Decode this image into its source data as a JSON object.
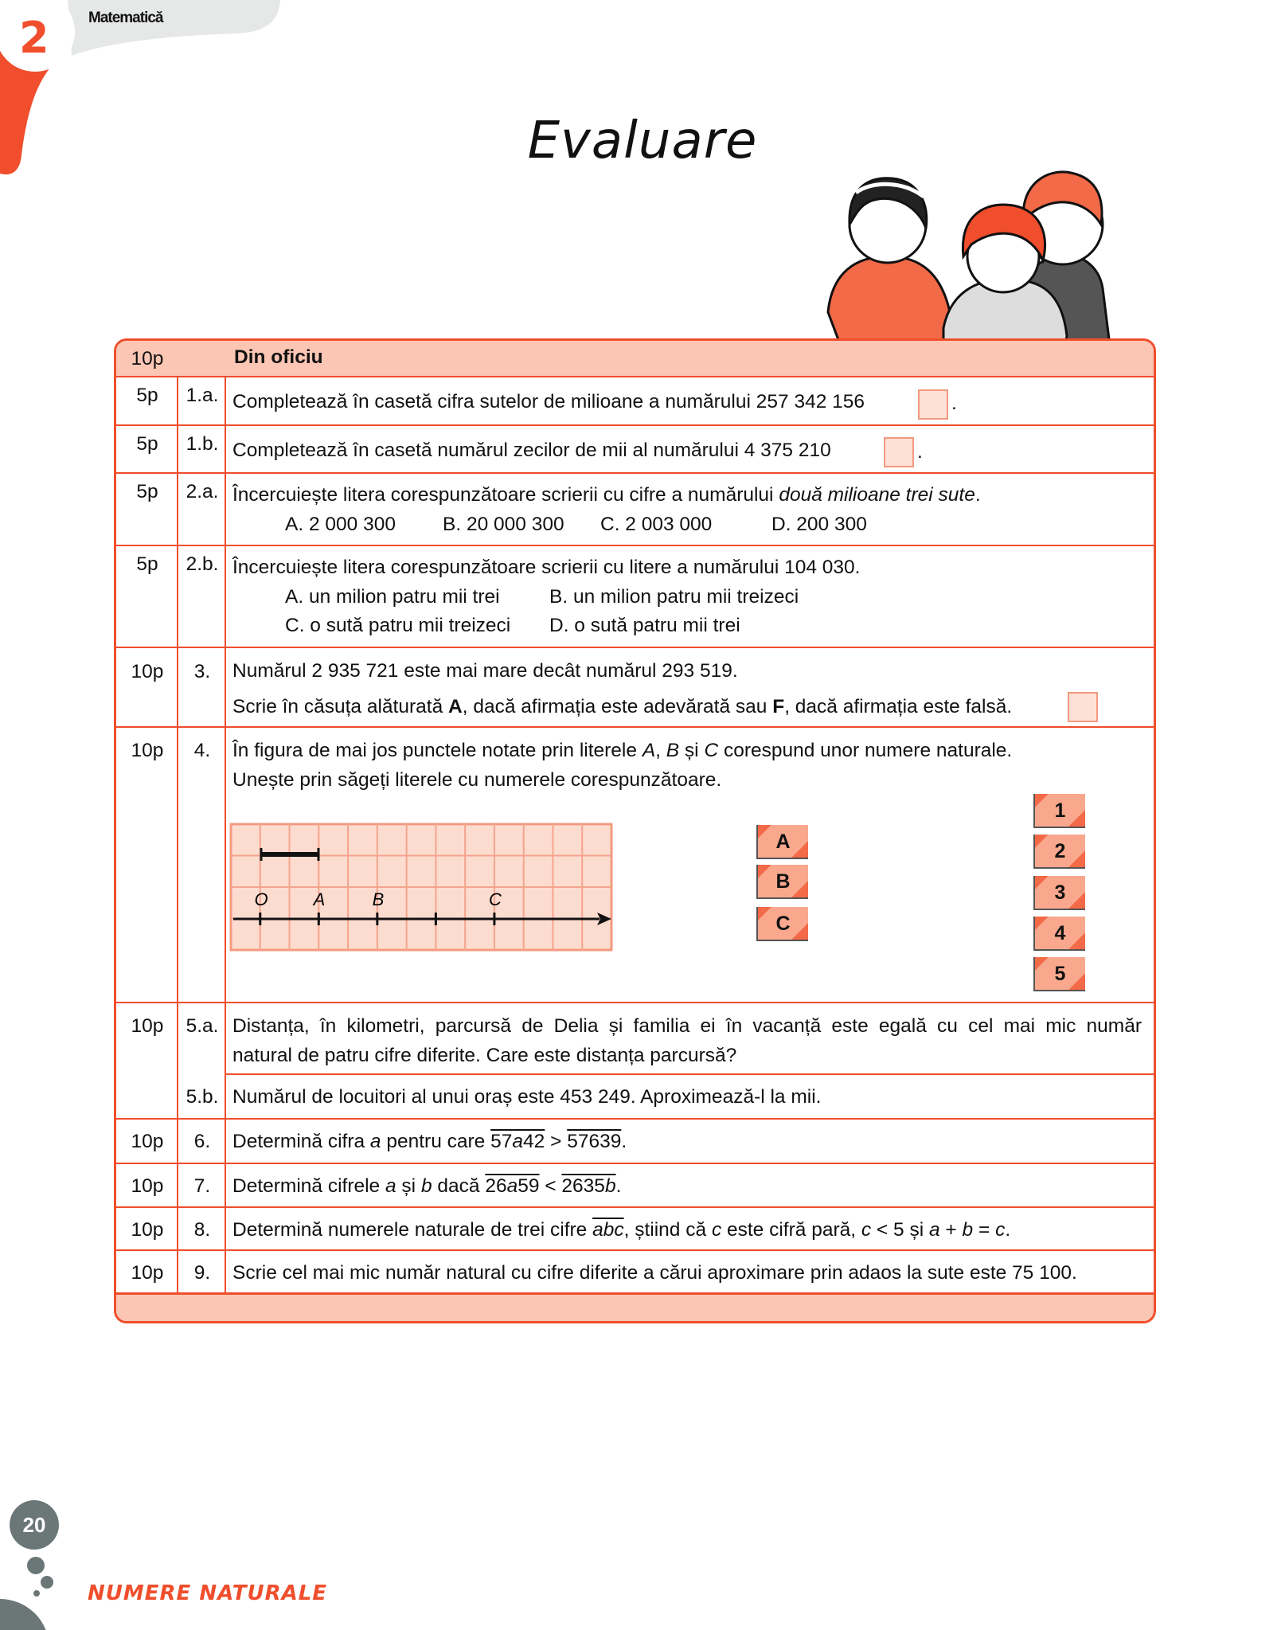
{
  "header": {
    "chapter_number": "2",
    "subject": "Matematică",
    "title": "Evaluare"
  },
  "colors": {
    "accent": "#f04e2c",
    "cell_fill": "#fbc6b3",
    "grid_fill": "#fddcd0",
    "footer_gray": "#6b7777"
  },
  "table": {
    "header": {
      "points": "10p",
      "label": "Din oficiu"
    },
    "rows": [
      {
        "points": "5p",
        "num": "1.a.",
        "text": "Completează în casetă cifra sutelor de milioane a numărului 257 342 156",
        "after": "."
      },
      {
        "points": "5p",
        "num": "1.b.",
        "text": "Completează în casetă numărul zecilor de mii al numărului 4 375 210",
        "after": "."
      },
      {
        "points": "5p",
        "num": "2.a.",
        "text": "Încercuiește litera corespunzătoare scrierii cu cifre a numărului ",
        "italic": "două milioane trei sute",
        "after": ".",
        "options": [
          "A. 2 000 300",
          "B. 20 000 300",
          "C. 2 003 000",
          "D. 200 300"
        ]
      },
      {
        "points": "5p",
        "num": "2.b.",
        "text": "Încercuiește litera corespunzătoare scrierii cu litere a numărului 104 030.",
        "options": [
          "A. un milion patru mii trei",
          "B. un milion patru mii treizeci",
          "C. o sută patru mii treizeci",
          "D. o sută patru mii trei"
        ]
      },
      {
        "points": "10p",
        "num": "3.",
        "line1": "Numărul 2 935 721 este mai mare decât numărul 293 519.",
        "l2a": "Scrie în căsuța alăturată ",
        "l2b": "A",
        "l2c": ", dacă afirmația este adevărată sau ",
        "l2d": "F",
        "l2e": ", dacă afirmația este falsă."
      },
      {
        "points": "10p",
        "num": "4.",
        "l1a": "În figura de mai jos punctele notate prin literele ",
        "l1b": "A",
        "l1c": ", ",
        "l1d": "B",
        "l1e": " și ",
        "l1f": "C",
        "l1g": " corespund unor numere naturale.",
        "line2": "Unește prin săgeți literele cu numerele corespunzătoare.",
        "figure": {
          "point_labels": [
            "O",
            "A",
            "B",
            "C"
          ]
        },
        "letters": [
          "A",
          "B",
          "C"
        ],
        "numbers": [
          "1",
          "2",
          "3",
          "4",
          "5"
        ]
      },
      {
        "points": "10p",
        "num": "5.a.",
        "line1": "Distanța, în kilometri, parcursă de Delia și familia ei în vacanță este egală cu cel mai mic număr",
        "line2": "natural de patru cifre diferite. Care este distanța parcursă?"
      },
      {
        "points": "",
        "num": "5.b.",
        "text": "Numărul de locuitori al unui oraș este 453 249. Aproximează-l la mii."
      },
      {
        "points": "10p",
        "num": "6.",
        "a": "Determină cifra ",
        "b": "a",
        "c": " pentru care ",
        "d1": "57",
        "d2": "a",
        "d3": "42",
        "e": " > ",
        "f": "57639",
        "g": "."
      },
      {
        "points": "10p",
        "num": "7.",
        "a": "Determină cifrele ",
        "b": "a",
        "c": " și ",
        "d": "b",
        "e": " dacă ",
        "f1": "26",
        "f2": "a",
        "f3": "59",
        "g": " < ",
        "h1": "2635",
        "h2": "b",
        "i": "."
      },
      {
        "points": "10p",
        "num": "8.",
        "a": "Determină numerele naturale de trei cifre ",
        "b": "abc",
        "c": ", știind că ",
        "d": "c",
        "e": " este cifră pară, ",
        "f": "c",
        "g": " < 5 și ",
        "h": "a",
        "i": " + ",
        "j": "b",
        "k": " = ",
        "l": "c",
        "m": "."
      },
      {
        "points": "10p",
        "num": "9.",
        "text": "Scrie cel mai mic număr natural cu cifre diferite a cărui aproximare prin adaos la sute este 75 100."
      }
    ]
  },
  "footer": {
    "page_number": "20",
    "chapter": "NUMERE NATURALE"
  }
}
